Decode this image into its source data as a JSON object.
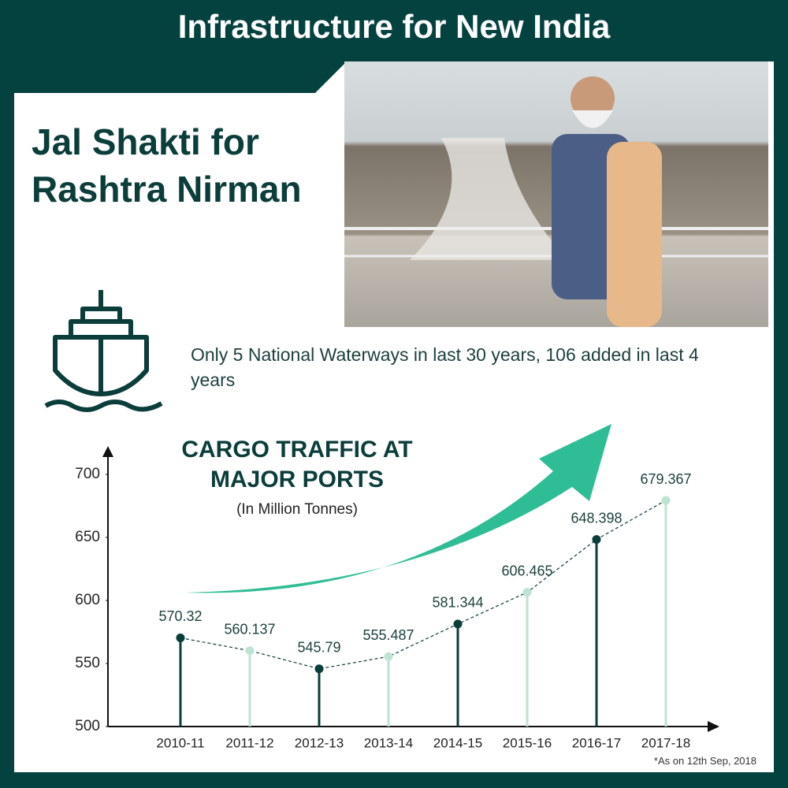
{
  "header": {
    "title": "Infrastructure for New India"
  },
  "heading": [
    "Jal Shakti for",
    "Rashtra Nirman"
  ],
  "description": "Only 5 National Waterways in last 30 years, 106 added in last 4 years",
  "footnote": "*As on 12th Sep, 2018",
  "chart_data": {
    "type": "lollipop",
    "title": "CARGO TRAFFIC AT MAJOR PORTS",
    "subtitle": "(In Million Tonnes)",
    "categories": [
      "2010-11",
      "2011-12",
      "2012-13",
      "2013-14",
      "2014-15",
      "2015-16",
      "2016-17",
      "2017-18"
    ],
    "values": [
      570.32,
      560.137,
      545.79,
      555.487,
      581.344,
      606.465,
      648.398,
      679.367
    ],
    "point_colors": [
      "#0b3d3a",
      "#bfe3d2",
      "#0b3d3a",
      "#bfe3d2",
      "#0b3d3a",
      "#bfe3d2",
      "#0b3d3a",
      "#bfe3d2"
    ],
    "line_color": "#0b3d3a",
    "ylim": [
      500,
      720
    ],
    "yticks": [
      500,
      550,
      600,
      650,
      700
    ]
  }
}
